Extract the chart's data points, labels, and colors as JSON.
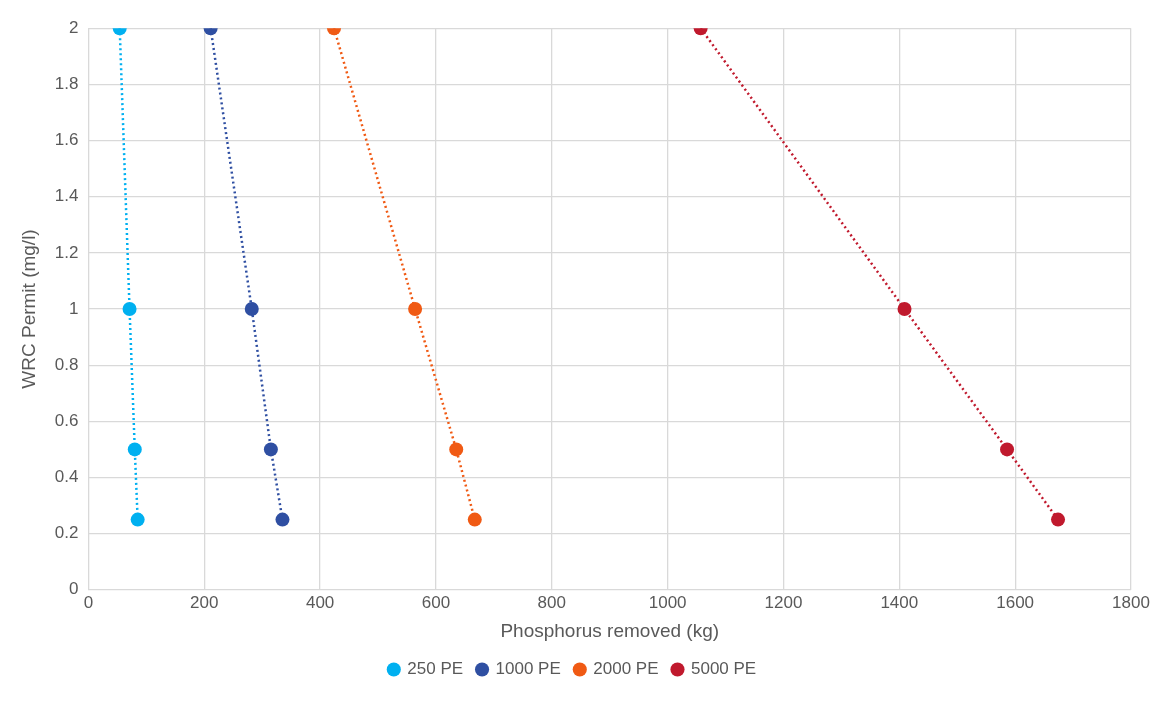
{
  "chart_data": {
    "type": "line",
    "xlabel": "Phosphorus removed (kg)",
    "ylabel": "WRC Permit (mg/l)",
    "xlim": [
      0,
      1800
    ],
    "xticks": [
      0,
      200,
      400,
      600,
      800,
      1000,
      1200,
      1400,
      1600,
      1800
    ],
    "ylim": [
      0,
      2
    ],
    "yticks": [
      0,
      0.2,
      0.4,
      0.6,
      0.8,
      1,
      1.2,
      1.4,
      1.6,
      1.8,
      2
    ],
    "grid": true,
    "legend": "bottom",
    "marker": "circle",
    "line_style": "dotted",
    "series": [
      {
        "name": "250 PE",
        "color": "#00b0f0",
        "x": [
          54,
          71,
          80,
          85
        ],
        "values": [
          2,
          1,
          0.5,
          0.25
        ]
      },
      {
        "name": "1000 PE",
        "color": "#2f4fa2",
        "x": [
          211,
          282,
          315,
          335
        ],
        "values": [
          2,
          1,
          0.5,
          0.25
        ]
      },
      {
        "name": "2000 PE",
        "color": "#f05a14",
        "x": [
          424,
          564,
          635,
          667
        ],
        "values": [
          2,
          1,
          0.5,
          0.25
        ]
      },
      {
        "name": "5000 PE",
        "color": "#c0192d",
        "x": [
          1057,
          1409,
          1586,
          1674
        ],
        "values": [
          2,
          1,
          0.5,
          0.25
        ]
      }
    ]
  }
}
